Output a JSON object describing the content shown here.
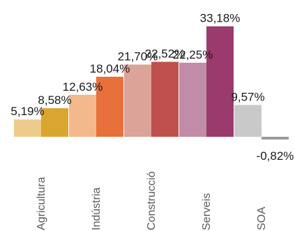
{
  "chart_data": {
    "type": "bar",
    "categories": [
      "Agricultura",
      "Indústria",
      "Construcció",
      "Serveis",
      "SOA"
    ],
    "series": [
      {
        "values": [
          5.19,
          12.63,
          21.7,
          22.25,
          9.57
        ],
        "labels": [
          "5,19%",
          "12,63%",
          "21,70%",
          "22,25%",
          "9,57%"
        ],
        "colors": [
          "#eecb8c",
          "#f3b88c",
          "#dca398",
          "#c08ca8",
          "#c9c9c9"
        ]
      },
      {
        "values": [
          8.58,
          18.04,
          22.52,
          33.18,
          -0.82
        ],
        "labels": [
          "8,58%",
          "18,04%",
          "22,52%",
          "33,18%",
          "-0,82%"
        ],
        "colors": [
          "#dba630",
          "#e8703a",
          "#c0504d",
          "#9b3a6c",
          "#9a9a9a"
        ]
      }
    ],
    "ylim": [
      -0.82,
      33.18
    ],
    "title": "",
    "xlabel": "",
    "ylabel": "",
    "grid": false,
    "legend": "none"
  }
}
